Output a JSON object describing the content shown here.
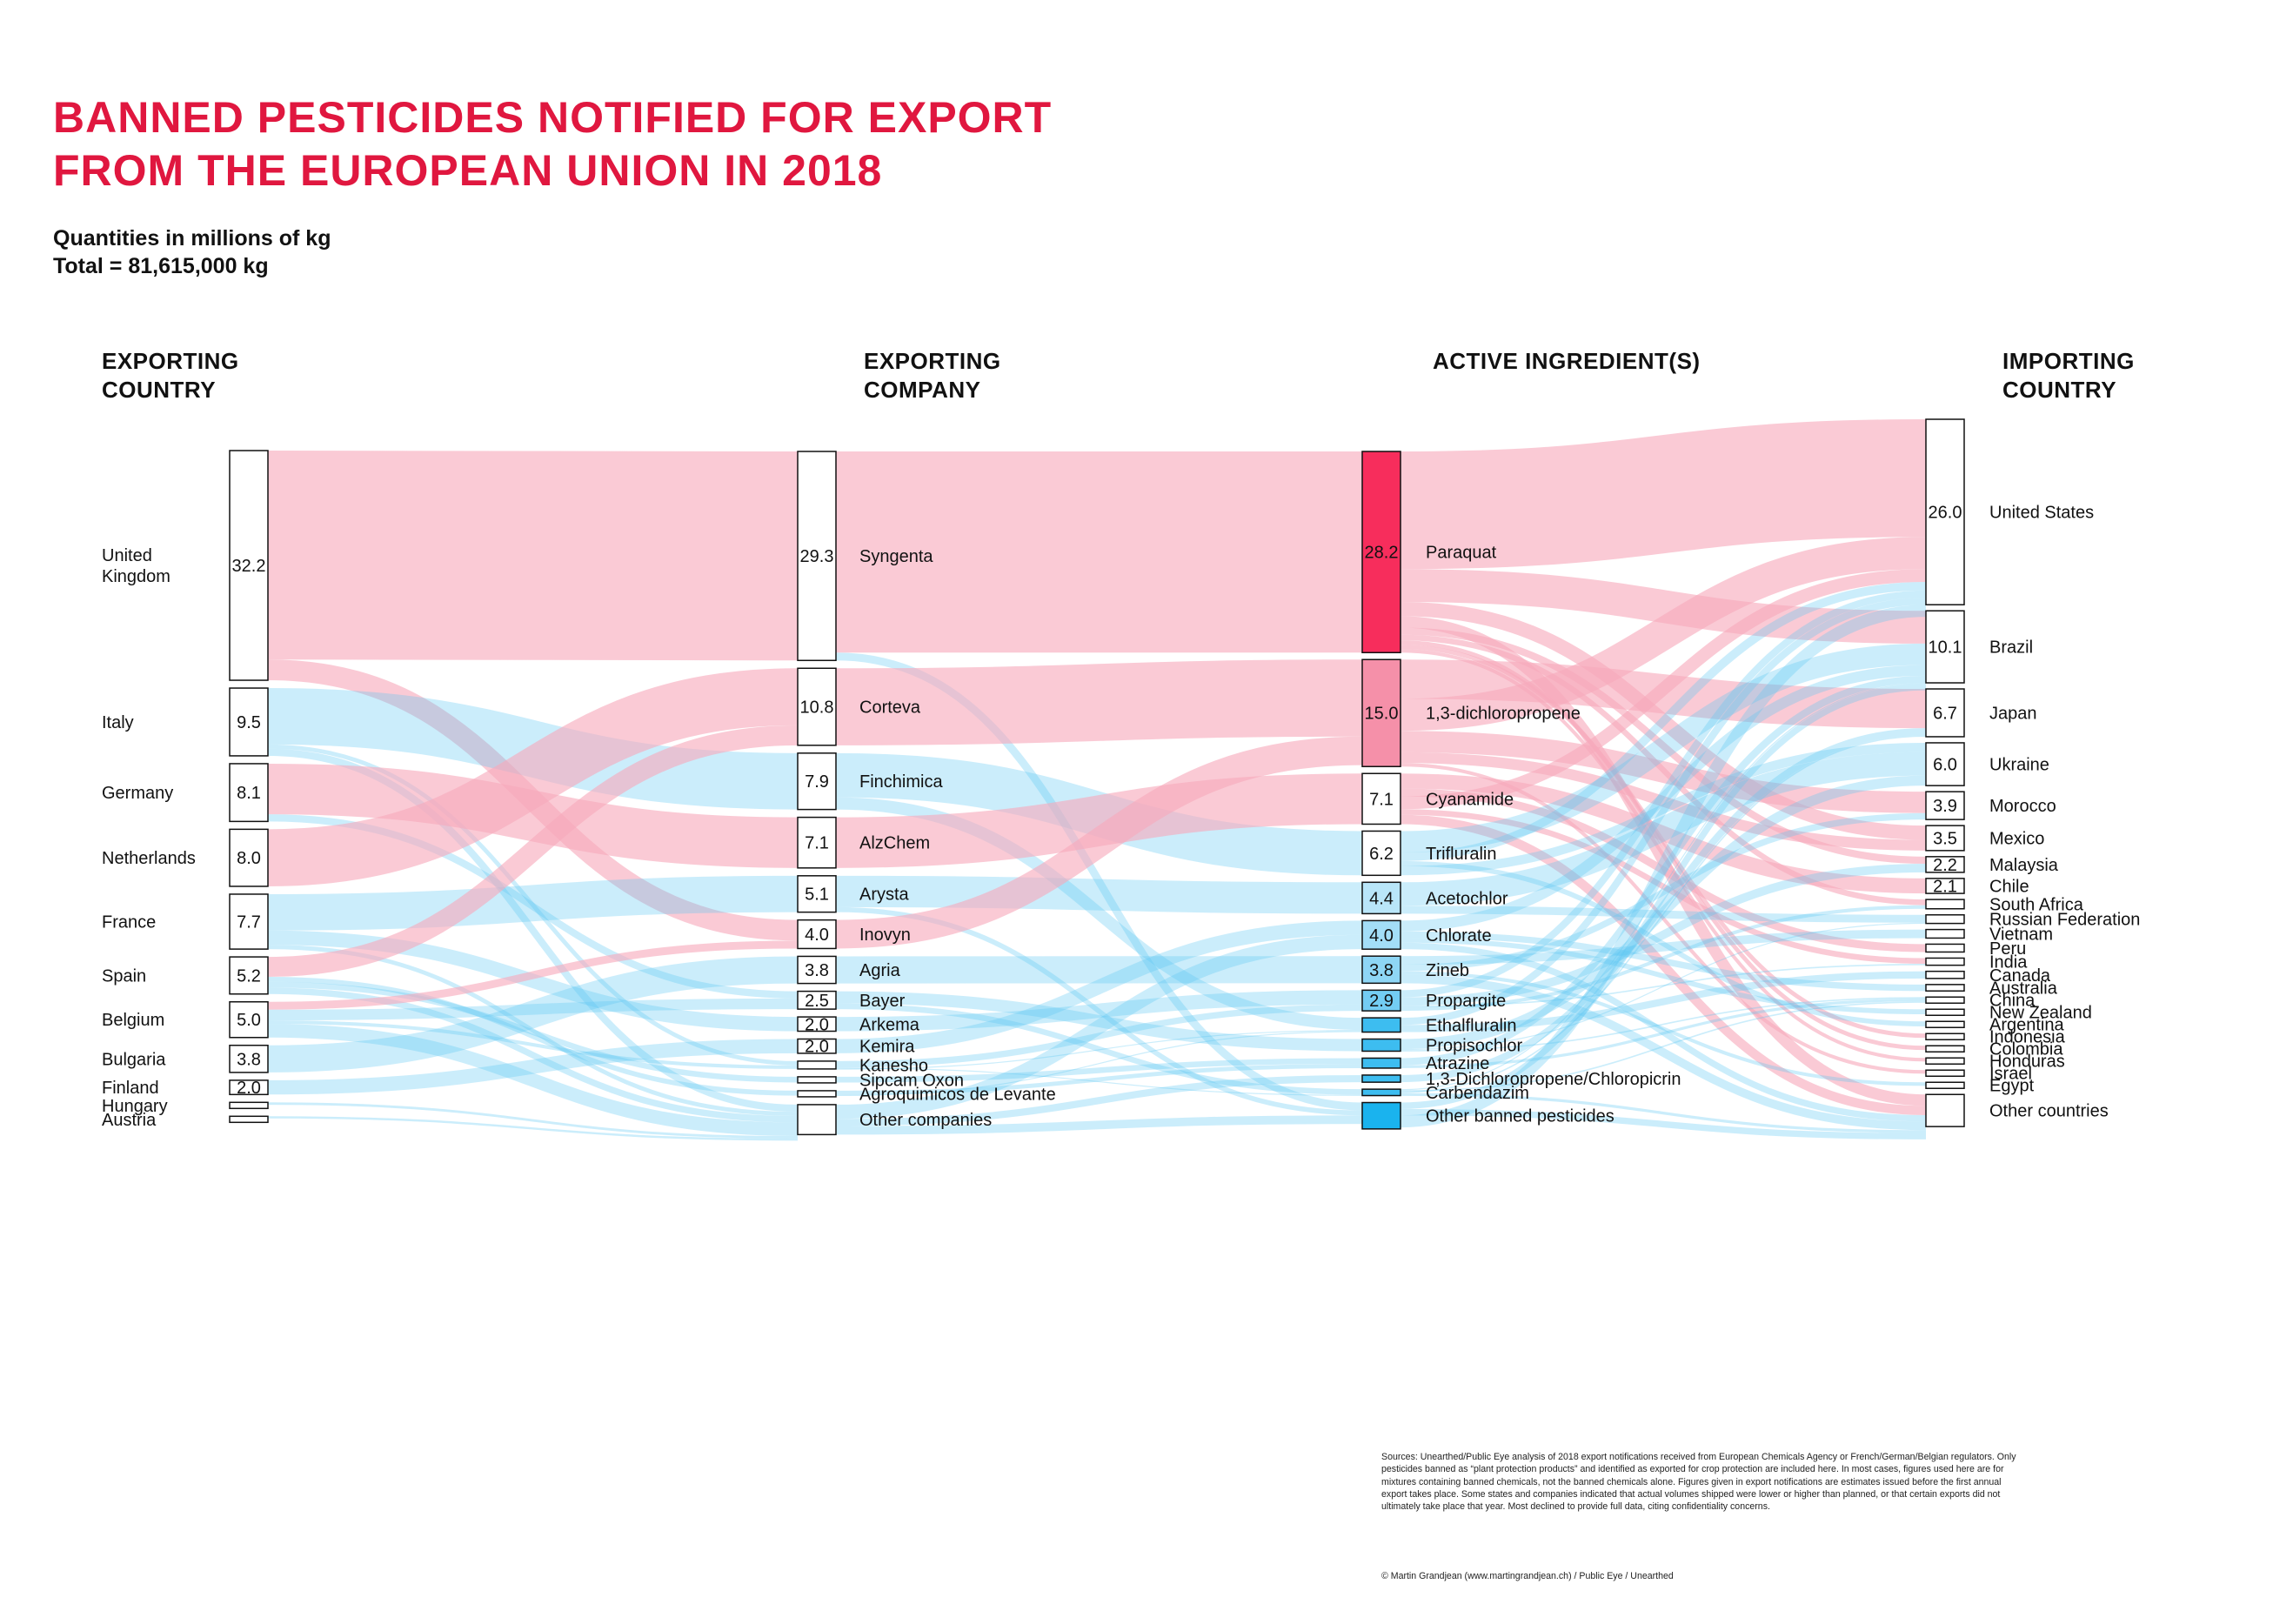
{
  "header": {
    "title_line1": "BANNED PESTICIDES NOTIFIED FOR EXPORT",
    "title_line2": "FROM THE EUROPEAN UNION IN 2018",
    "subtitle_line1": "Quantities in millions of kg",
    "subtitle_line2": "Total = 81,615,000 kg"
  },
  "columns": {
    "exporting_country": [
      "EXPORTING",
      "COUNTRY"
    ],
    "exporting_company": [
      "EXPORTING",
      "COMPANY"
    ],
    "active_ingredients": [
      "ACTIVE INGREDIENT(S)"
    ],
    "importing_country": [
      "IMPORTING",
      "COUNTRY"
    ]
  },
  "footer": {
    "sources": "Sources: Unearthed/Public Eye analysis of 2018 export notifications received from European Chemicals Agency or French/German/Belgian regulators. Only pesticides banned as “plant protection products” and identified as exported for crop protection are included here. In most cases, figures used here are for mixtures containing banned chemicals, not the banned chemicals alone. Figures given in export notifications are estimates issued before the first annual export takes place. Some states and companies indicated that actual volumes shipped were lower or higher than planned, or that certain exports did not ultimately take place that year. Most declined to provide full data, citing confidentiality concerns.",
    "credit": "© Martin Grandjean (www.martingrandjean.ch) / Public Eye / Unearthed"
  },
  "colors": {
    "title": "#e0173f",
    "paraquat": "#f72d5c",
    "dichloropropene": "#f590a9",
    "pink_flow": "#f7a9bc",
    "blue_node": "#1ab3ee",
    "blue_flow": "#5cc6f2"
  },
  "chart_data": {
    "type": "sankey",
    "unit": "millions of kg",
    "total": "81,615,000 kg",
    "exporting_countries": [
      {
        "name": "United Kingdom",
        "label_lines": [
          "United",
          "Kingdom"
        ],
        "value": 32.2,
        "value_label": "32.2"
      },
      {
        "name": "Italy",
        "value": 9.5,
        "value_label": "9.5"
      },
      {
        "name": "Germany",
        "value": 8.1,
        "value_label": "8.1"
      },
      {
        "name": "Netherlands",
        "value": 8.0,
        "value_label": "8.0"
      },
      {
        "name": "France",
        "value": 7.7,
        "value_label": "7.7"
      },
      {
        "name": "Spain",
        "value": 5.2,
        "value_label": "5.2"
      },
      {
        "name": "Belgium",
        "value": 5.0,
        "value_label": "5.0"
      },
      {
        "name": "Bulgaria",
        "value": 3.8,
        "value_label": "3.8"
      },
      {
        "name": "Finland",
        "value": 2.0,
        "value_label": "2.0"
      },
      {
        "name": "Hungary",
        "value": 0.35,
        "value_label": ""
      },
      {
        "name": "Austria",
        "value": 0.3,
        "value_label": ""
      }
    ],
    "exporting_companies": [
      {
        "name": "Syngenta",
        "value": 29.3,
        "value_label": "29.3"
      },
      {
        "name": "Corteva",
        "value": 10.8,
        "value_label": "10.8"
      },
      {
        "name": "Finchimica",
        "value": 7.9,
        "value_label": "7.9"
      },
      {
        "name": "AlzChem",
        "value": 7.1,
        "value_label": "7.1"
      },
      {
        "name": "Arysta",
        "value": 5.1,
        "value_label": "5.1"
      },
      {
        "name": "Inovyn",
        "value": 4.0,
        "value_label": "4.0"
      },
      {
        "name": "Agria",
        "value": 3.8,
        "value_label": "3.8"
      },
      {
        "name": "Bayer",
        "value": 2.5,
        "value_label": "2.5"
      },
      {
        "name": "Arkema",
        "value": 2.0,
        "value_label": "2.0"
      },
      {
        "name": "Kemira",
        "value": 2.0,
        "value_label": "2.0"
      },
      {
        "name": "Kanesho",
        "value": 1.1,
        "value_label": ""
      },
      {
        "name": "Sipcam Oxon",
        "value": 0.8,
        "value_label": ""
      },
      {
        "name": "Agroquimicos de Levante",
        "value": 0.7,
        "value_label": ""
      },
      {
        "name": "Other companies",
        "value": 4.2,
        "value_label": ""
      }
    ],
    "active_ingredients": [
      {
        "name": "Paraquat",
        "value": 28.2,
        "value_label": "28.2",
        "fill": "#f72d5c"
      },
      {
        "name": "1,3-dichloropropene",
        "value": 15.0,
        "value_label": "15.0",
        "fill": "#f590a9"
      },
      {
        "name": "Cyanamide",
        "value": 7.1,
        "value_label": "7.1",
        "fill": "#ffffff"
      },
      {
        "name": "Trifluralin",
        "value": 6.2,
        "value_label": "6.2",
        "fill": "#ffffff"
      },
      {
        "name": "Acetochlor",
        "value": 4.4,
        "value_label": "4.4",
        "fill": "#b9e6f9"
      },
      {
        "name": "Chlorate",
        "value": 4.0,
        "value_label": "4.0",
        "fill": "#a3def7"
      },
      {
        "name": "Zineb",
        "value": 3.8,
        "value_label": "3.8",
        "fill": "#8ed6f5"
      },
      {
        "name": "Propargite",
        "value": 2.9,
        "value_label": "2.9",
        "fill": "#73cdf3"
      },
      {
        "name": "Ethalfluralin",
        "value": 2.0,
        "value_label": "",
        "fill": "#3dbdf0"
      },
      {
        "name": "Propisochlor",
        "value": 1.7,
        "value_label": "",
        "fill": "#3dbdf0"
      },
      {
        "name": "Atrazine",
        "value": 1.4,
        "value_label": "",
        "fill": "#3dbdf0"
      },
      {
        "name": "1,3-Dichloropropene/Chloropicrin",
        "value": 1.0,
        "value_label": "",
        "fill": "#3dbdf0"
      },
      {
        "name": "Carbendazim",
        "value": 0.9,
        "value_label": "",
        "fill": "#3dbdf0"
      },
      {
        "name": "Other banned pesticides",
        "value": 3.7,
        "value_label": "",
        "fill": "#1ab3ee"
      }
    ],
    "importing_countries": [
      {
        "name": "United States",
        "value": 26.0,
        "value_label": "26.0"
      },
      {
        "name": "Brazil",
        "value": 10.1,
        "value_label": "10.1"
      },
      {
        "name": "Japan",
        "value": 6.7,
        "value_label": "6.7"
      },
      {
        "name": "Ukraine",
        "value": 6.0,
        "value_label": "6.0"
      },
      {
        "name": "Morocco",
        "value": 3.9,
        "value_label": "3.9"
      },
      {
        "name": "Mexico",
        "value": 3.5,
        "value_label": "3.5"
      },
      {
        "name": "Malaysia",
        "value": 2.2,
        "value_label": "2.2"
      },
      {
        "name": "Chile",
        "value": 2.1,
        "value_label": "2.1"
      },
      {
        "name": "South Africa",
        "value": 1.3,
        "value_label": ""
      },
      {
        "name": "Russian Federation",
        "value": 1.2,
        "value_label": ""
      },
      {
        "name": "Vietnam",
        "value": 1.2,
        "value_label": ""
      },
      {
        "name": "Peru",
        "value": 1.1,
        "value_label": ""
      },
      {
        "name": "India",
        "value": 1.0,
        "value_label": ""
      },
      {
        "name": "Canada",
        "value": 1.0,
        "value_label": ""
      },
      {
        "name": "Australia",
        "value": 0.9,
        "value_label": ""
      },
      {
        "name": "China",
        "value": 0.8,
        "value_label": ""
      },
      {
        "name": "New Zealand",
        "value": 0.7,
        "value_label": ""
      },
      {
        "name": "Argentina",
        "value": 0.7,
        "value_label": ""
      },
      {
        "name": "Indonesia",
        "value": 0.6,
        "value_label": ""
      },
      {
        "name": "Colombia",
        "value": 0.6,
        "value_label": ""
      },
      {
        "name": "Honduras",
        "value": 0.5,
        "value_label": ""
      },
      {
        "name": "Israel",
        "value": 0.5,
        "value_label": ""
      },
      {
        "name": "Egypt",
        "value": 0.5,
        "value_label": ""
      },
      {
        "name": "Other countries",
        "value": 4.5,
        "value_label": ""
      }
    ],
    "links_country_company": [
      [
        "United Kingdom",
        "Syngenta",
        29.3,
        "pink"
      ],
      [
        "United Kingdom",
        "Inovyn",
        2.9,
        "pink"
      ],
      [
        "Italy",
        "Finchimica",
        7.9,
        "blue"
      ],
      [
        "Italy",
        "Kanesho",
        0.6,
        "blue"
      ],
      [
        "Italy",
        "Other companies",
        1.0,
        "blue"
      ],
      [
        "Germany",
        "AlzChem",
        7.1,
        "pink"
      ],
      [
        "Germany",
        "Bayer",
        1.0,
        "blue"
      ],
      [
        "Netherlands",
        "Corteva",
        8.0,
        "pink"
      ],
      [
        "France",
        "Arysta",
        5.1,
        "blue"
      ],
      [
        "France",
        "Arkema",
        2.0,
        "blue"
      ],
      [
        "France",
        "Other companies",
        0.6,
        "blue"
      ],
      [
        "Spain",
        "Corteva",
        2.8,
        "pink"
      ],
      [
        "Spain",
        "Agroquimicos de Levante",
        0.7,
        "blue"
      ],
      [
        "Spain",
        "Sipcam Oxon",
        0.8,
        "blue"
      ],
      [
        "Spain",
        "Other companies",
        0.9,
        "blue"
      ],
      [
        "Belgium",
        "Inovyn",
        1.1,
        "pink"
      ],
      [
        "Belgium",
        "Bayer",
        1.5,
        "blue"
      ],
      [
        "Belgium",
        "Kanesho",
        0.5,
        "blue"
      ],
      [
        "Belgium",
        "Other companies",
        1.9,
        "blue"
      ],
      [
        "Bulgaria",
        "Agria",
        3.8,
        "blue"
      ],
      [
        "Finland",
        "Kemira",
        2.0,
        "blue"
      ],
      [
        "Hungary",
        "Other companies",
        0.35,
        "blue"
      ],
      [
        "Austria",
        "Other companies",
        0.3,
        "blue"
      ]
    ],
    "links_company_ingredient": [
      [
        "Syngenta",
        "Paraquat",
        28.2,
        "pink"
      ],
      [
        "Syngenta",
        "Other banned pesticides",
        1.1,
        "blue"
      ],
      [
        "Corteva",
        "1,3-dichloropropene",
        10.8,
        "pink"
      ],
      [
        "Finchimica",
        "Trifluralin",
        6.2,
        "blue"
      ],
      [
        "Finchimica",
        "Ethalfluralin",
        1.7,
        "blue"
      ],
      [
        "AlzChem",
        "Cyanamide",
        7.1,
        "pink"
      ],
      [
        "Arysta",
        "Acetochlor",
        4.4,
        "blue"
      ],
      [
        "Arysta",
        "Other banned pesticides",
        0.7,
        "blue"
      ],
      [
        "Inovyn",
        "1,3-dichloropropene",
        4.0,
        "pink"
      ],
      [
        "Agria",
        "Zineb",
        3.8,
        "blue"
      ],
      [
        "Bayer",
        "Propisochlor",
        1.7,
        "blue"
      ],
      [
        "Bayer",
        "Carbendazim",
        0.8,
        "blue"
      ],
      [
        "Arkema",
        "Propargite",
        2.0,
        "blue"
      ],
      [
        "Kemira",
        "Chlorate",
        2.0,
        "blue"
      ],
      [
        "Kanesho",
        "Propargite",
        0.9,
        "blue"
      ],
      [
        "Kanesho",
        "Carbendazim",
        0.1,
        "blue"
      ],
      [
        "Kanesho",
        "Ethalfluralin",
        0.1,
        "blue"
      ],
      [
        "Sipcam Oxon",
        "Atrazine",
        0.8,
        "blue"
      ],
      [
        "Agroquimicos de Levante",
        "Atrazine",
        0.6,
        "blue"
      ],
      [
        "Agroquimicos de Levante",
        "Ethalfluralin",
        0.1,
        "blue"
      ],
      [
        "Other companies",
        "Chlorate",
        2.0,
        "blue"
      ],
      [
        "Other companies",
        "1,3-Dichloropropene/Chloropicrin",
        1.0,
        "blue"
      ],
      [
        "Other companies",
        "Other banned pesticides",
        1.2,
        "blue"
      ]
    ],
    "links_ingredient_importer": [
      [
        "Paraquat",
        "United States",
        16.5,
        "pink"
      ],
      [
        "Paraquat",
        "Brazil",
        4.6,
        "pink"
      ],
      [
        "Paraquat",
        "Mexico",
        2.0,
        "pink"
      ],
      [
        "Paraquat",
        "Other countries",
        1.6,
        "pink"
      ],
      [
        "Paraquat",
        "Malaysia",
        1.0,
        "pink"
      ],
      [
        "Paraquat",
        "South Africa",
        0.8,
        "pink"
      ],
      [
        "Paraquat",
        "Colombia",
        0.6,
        "pink"
      ],
      [
        "Paraquat",
        "Indonesia",
        0.6,
        "pink"
      ],
      [
        "Paraquat",
        "Honduras",
        0.5,
        "pink"
      ],
      [
        "1,3-dichloropropene",
        "Japan",
        5.5,
        "pink"
      ],
      [
        "1,3-dichloropropene",
        "United States",
        4.5,
        "pink"
      ],
      [
        "1,3-dichloropropene",
        "Morocco",
        3.0,
        "pink"
      ],
      [
        "1,3-dichloropropene",
        "Mexico",
        1.5,
        "pink"
      ],
      [
        "1,3-dichloropropene",
        "Israel",
        0.5,
        "pink"
      ],
      [
        "Cyanamide",
        "Chile",
        2.1,
        "pink"
      ],
      [
        "Cyanamide",
        "Peru",
        1.1,
        "pink"
      ],
      [
        "Cyanamide",
        "United States",
        1.8,
        "pink"
      ],
      [
        "Cyanamide",
        "India",
        0.8,
        "pink"
      ],
      [
        "Cyanamide",
        "Other countries",
        1.3,
        "pink"
      ],
      [
        "Trifluralin",
        "Brazil",
        3.0,
        "blue"
      ],
      [
        "Trifluralin",
        "United States",
        1.2,
        "blue"
      ],
      [
        "Trifluralin",
        "Argentina",
        0.7,
        "blue"
      ],
      [
        "Trifluralin",
        "Ukraine",
        1.3,
        "blue"
      ],
      [
        "Acetochlor",
        "Ukraine",
        3.3,
        "blue"
      ],
      [
        "Acetochlor",
        "Russian Federation",
        1.1,
        "blue"
      ],
      [
        "Chlorate",
        "Brazil",
        1.5,
        "blue"
      ],
      [
        "Chlorate",
        "Australia",
        0.9,
        "blue"
      ],
      [
        "Chlorate",
        "New Zealand",
        0.7,
        "blue"
      ],
      [
        "Chlorate",
        "Other countries",
        0.9,
        "blue"
      ],
      [
        "Zineb",
        "Vietnam",
        1.2,
        "blue"
      ],
      [
        "Zineb",
        "Morocco",
        0.9,
        "blue"
      ],
      [
        "Zineb",
        "Egypt",
        0.5,
        "blue"
      ],
      [
        "Zineb",
        "Other countries",
        1.2,
        "blue"
      ],
      [
        "Propargite",
        "United States",
        1.0,
        "blue"
      ],
      [
        "Propargite",
        "Malaysia",
        1.2,
        "blue"
      ],
      [
        "Propargite",
        "India",
        0.2,
        "blue"
      ],
      [
        "Propargite",
        "South Africa",
        0.5,
        "blue"
      ],
      [
        "Ethalfluralin",
        "United States",
        1.0,
        "blue"
      ],
      [
        "Ethalfluralin",
        "Canada",
        1.0,
        "blue"
      ],
      [
        "Propisochlor",
        "Ukraine",
        1.4,
        "blue"
      ],
      [
        "Propisochlor",
        "Russian Federation",
        0.1,
        "blue"
      ],
      [
        "Propisochlor",
        "China",
        0.2,
        "blue"
      ],
      [
        "Atrazine",
        "Brazil",
        1.0,
        "blue"
      ],
      [
        "Atrazine",
        "China",
        0.4,
        "blue"
      ],
      [
        "1,3-Dichloropropene/Chloropicrin",
        "Japan",
        1.0,
        "blue"
      ],
      [
        "Carbendazim",
        "Brazil",
        0.1,
        "blue"
      ],
      [
        "Carbendazim",
        "China",
        0.2,
        "blue"
      ],
      [
        "Carbendazim",
        "Japan",
        0.2,
        "blue"
      ],
      [
        "Carbendazim",
        "Other countries",
        0.4,
        "blue"
      ],
      [
        "Other banned pesticides",
        "Brazil",
        0.9,
        "blue"
      ],
      [
        "Other banned pesticides",
        "Other countries",
        0.9,
        "blue"
      ],
      [
        "Other banned pesticides",
        "United States",
        1.7,
        "blue"
      ]
    ]
  }
}
